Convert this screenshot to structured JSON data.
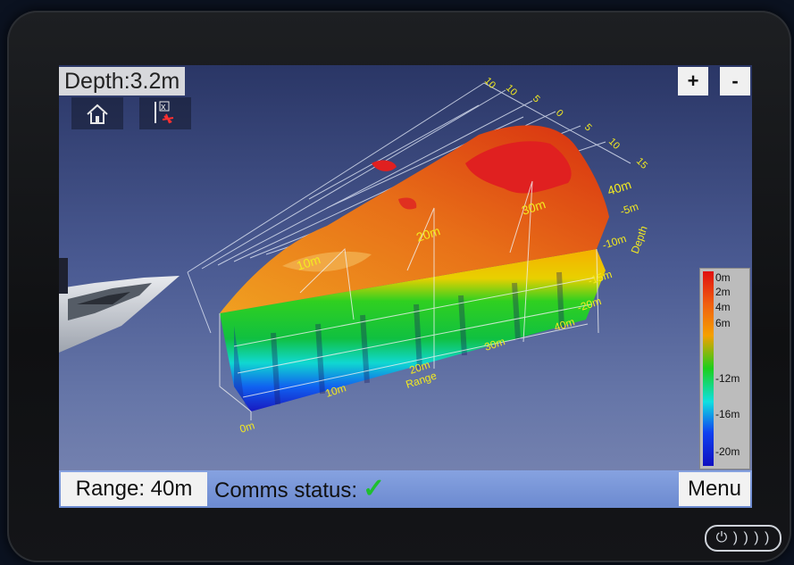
{
  "depth_readout": "Depth:3.2m",
  "zoom": {
    "plus_label": "+",
    "minus_label": "-"
  },
  "plot": {
    "range_marks_top": [
      "10m",
      "20m",
      "30m",
      "40m"
    ],
    "range_marks_bottom": [
      "0m",
      "10m",
      "20m",
      "30m",
      "40m"
    ],
    "range_axis_label": "Range",
    "depth_marks": [
      "-5m",
      "-10m",
      "-15m",
      "-20m"
    ],
    "depth_axis_label": "Depth",
    "side_marks": [
      "5",
      "0",
      "5",
      "10",
      "15"
    ],
    "side_marks_far": [
      "10",
      "10"
    ]
  },
  "legend": {
    "labels": [
      "0m",
      "2m",
      "4m",
      "6m",
      "-12m",
      "-16m",
      "-20m"
    ],
    "colors": [
      "#e01010",
      "#f06010",
      "#f5a000",
      "#1ccf1c",
      "#10e0e0",
      "#1040f0",
      "#1010c0"
    ]
  },
  "status": {
    "range_label": "Range: 40m",
    "comms_label": "Comms status:",
    "comms_ok": "✓",
    "menu_label": "Menu"
  },
  "icons": {
    "home": "home-icon",
    "waypoint": "waypoint-marker-icon",
    "power": "power-icon"
  },
  "power_glyph": "⏻ ) ) ) )"
}
